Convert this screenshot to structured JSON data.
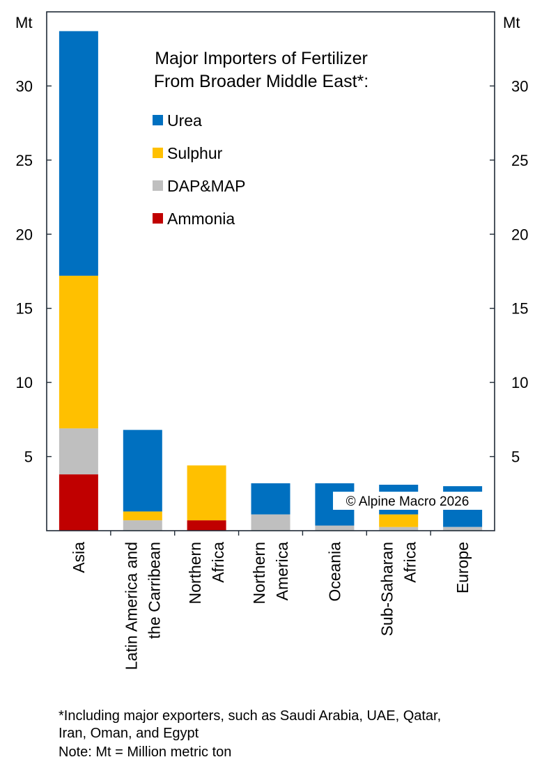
{
  "chart_data": {
    "type": "bar",
    "stacked": true,
    "title": [
      "Major Importers of Fertilizer",
      "From Broader Middle East*:"
    ],
    "unit_left": "Mt",
    "unit_right": "Mt",
    "ylim": [
      0,
      35
    ],
    "yticks": [
      5,
      10,
      15,
      20,
      25,
      30
    ],
    "categories": [
      [
        "Asia"
      ],
      [
        "Latin America and",
        "the Carribean"
      ],
      [
        "Northern",
        "Africa"
      ],
      [
        "Northern",
        "America"
      ],
      [
        "Oceania"
      ],
      [
        "Sub-Saharan",
        "Africa"
      ],
      [
        "Europe"
      ]
    ],
    "series": [
      {
        "name": "Ammonia",
        "color": "#c00000",
        "values": [
          3.8,
          0.0,
          0.7,
          0.0,
          0.0,
          0.0,
          0.0
        ]
      },
      {
        "name": "DAP&MAP",
        "color": "#bfbfbf",
        "values": [
          3.1,
          0.7,
          0.0,
          1.1,
          0.35,
          0.25,
          0.25
        ]
      },
      {
        "name": "Sulphur",
        "color": "#ffc000",
        "values": [
          10.3,
          0.6,
          3.7,
          0.0,
          0.0,
          0.85,
          0.0
        ]
      },
      {
        "name": "Urea",
        "color": "#0070c0",
        "values": [
          16.5,
          5.5,
          0.0,
          2.1,
          2.85,
          2.0,
          2.75
        ]
      }
    ],
    "legend_order": [
      "Urea",
      "Sulphur",
      "DAP&MAP",
      "Ammonia"
    ],
    "legend_placement": "top-center",
    "grid": false
  },
  "watermark": "© Alpine Macro 2026",
  "footnotes": [
    "*Including major exporters, such as Saudi Arabia, UAE, Qatar,",
    "Iran, Oman, and Egypt",
    "Note: Mt = Million metric ton"
  ]
}
